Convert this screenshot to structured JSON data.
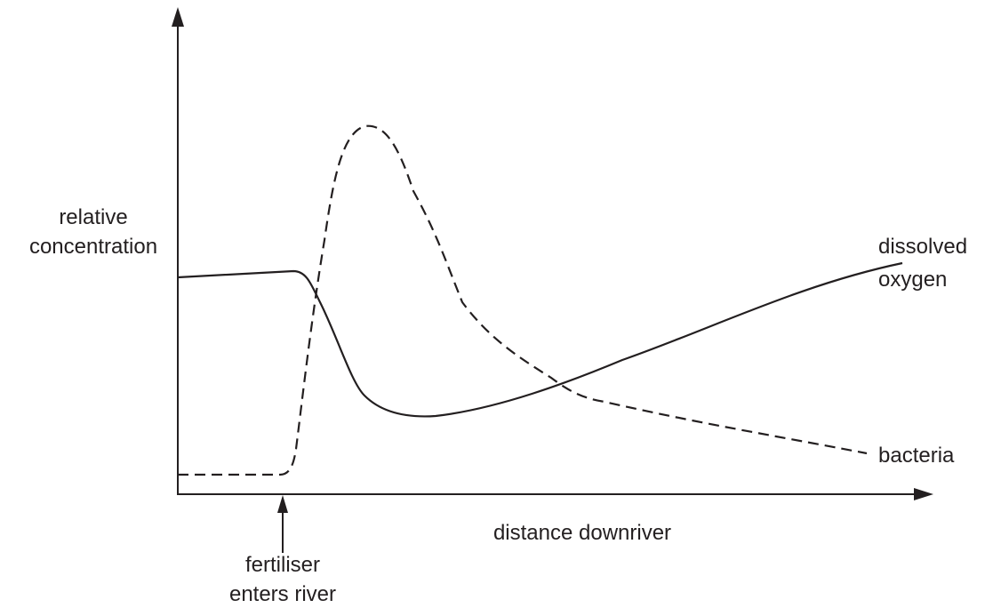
{
  "y_axis_label": [
    "relative",
    "concentration"
  ],
  "x_axis_label": "distance downriver",
  "curves": [
    {
      "label": [
        "dissolved",
        "oxygen"
      ]
    },
    {
      "label": [
        "bacteria"
      ]
    }
  ],
  "annotation": [
    "fertiliser",
    "enters river"
  ]
}
